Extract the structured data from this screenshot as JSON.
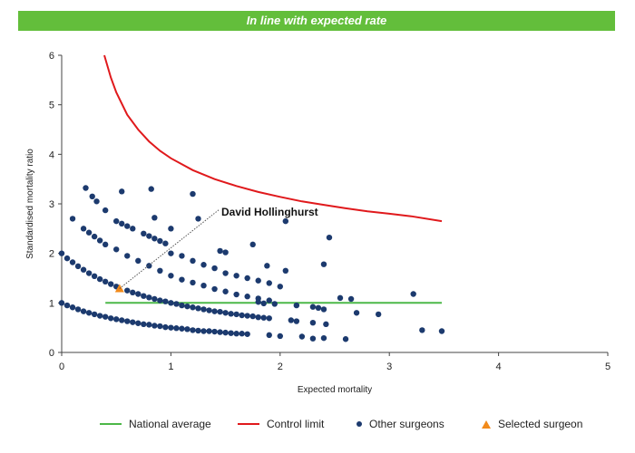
{
  "banner": {
    "text": "In line with expected rate",
    "color": "#63be3b"
  },
  "chart_data": {
    "type": "scatter",
    "title": "",
    "xlabel": "Expected mortality",
    "ylabel": "Standardised mortality ratio",
    "xlim": [
      0,
      5
    ],
    "ylim": [
      0,
      6
    ],
    "xticks": [
      "0",
      "1",
      "2",
      "3",
      "4",
      "5"
    ],
    "yticks": [
      "0",
      "1",
      "2",
      "3",
      "4",
      "5",
      "6"
    ],
    "grid": false,
    "legend_placement": "bottom",
    "annotation": {
      "text": "David Hollinghurst",
      "x": 0.53,
      "y": 1.29
    },
    "series": [
      {
        "name": "National average",
        "kind": "line",
        "color": "#4cb848",
        "points": [
          [
            0.4,
            1.0
          ],
          [
            3.48,
            1.0
          ]
        ]
      },
      {
        "name": "Control limit",
        "kind": "line",
        "color": "#e0191c",
        "points": [
          [
            0.39,
            6.0
          ],
          [
            0.45,
            5.55
          ],
          [
            0.5,
            5.25
          ],
          [
            0.6,
            4.8
          ],
          [
            0.7,
            4.5
          ],
          [
            0.8,
            4.26
          ],
          [
            0.9,
            4.07
          ],
          [
            1.0,
            3.92
          ],
          [
            1.2,
            3.68
          ],
          [
            1.4,
            3.5
          ],
          [
            1.6,
            3.36
          ],
          [
            1.8,
            3.24
          ],
          [
            2.0,
            3.14
          ],
          [
            2.2,
            3.05
          ],
          [
            2.4,
            2.98
          ],
          [
            2.6,
            2.91
          ],
          [
            2.8,
            2.85
          ],
          [
            3.0,
            2.8
          ],
          [
            3.2,
            2.75
          ],
          [
            3.48,
            2.65
          ]
        ]
      },
      {
        "name": "Other surgeons",
        "kind": "scatter",
        "color": "#1c3a6e",
        "points": [
          [
            0.0,
            1.0
          ],
          [
            0.05,
            0.95
          ],
          [
            0.1,
            0.91
          ],
          [
            0.15,
            0.87
          ],
          [
            0.2,
            0.83
          ],
          [
            0.25,
            0.8
          ],
          [
            0.3,
            0.77
          ],
          [
            0.35,
            0.74
          ],
          [
            0.4,
            0.72
          ],
          [
            0.45,
            0.69
          ],
          [
            0.5,
            0.67
          ],
          [
            0.55,
            0.65
          ],
          [
            0.6,
            0.63
          ],
          [
            0.65,
            0.61
          ],
          [
            0.7,
            0.59
          ],
          [
            0.75,
            0.57
          ],
          [
            0.8,
            0.56
          ],
          [
            0.85,
            0.54
          ],
          [
            0.9,
            0.53
          ],
          [
            0.95,
            0.51
          ],
          [
            1.0,
            0.5
          ],
          [
            1.05,
            0.49
          ],
          [
            1.1,
            0.48
          ],
          [
            1.15,
            0.47
          ],
          [
            1.2,
            0.45
          ],
          [
            1.25,
            0.44
          ],
          [
            1.3,
            0.43
          ],
          [
            1.35,
            0.43
          ],
          [
            1.4,
            0.42
          ],
          [
            1.45,
            0.41
          ],
          [
            1.5,
            0.4
          ],
          [
            1.55,
            0.39
          ],
          [
            1.6,
            0.38
          ],
          [
            1.65,
            0.38
          ],
          [
            1.7,
            0.37
          ],
          [
            0.0,
            2.0
          ],
          [
            0.05,
            1.9
          ],
          [
            0.1,
            1.82
          ],
          [
            0.15,
            1.74
          ],
          [
            0.2,
            1.67
          ],
          [
            0.25,
            1.6
          ],
          [
            0.3,
            1.54
          ],
          [
            0.35,
            1.48
          ],
          [
            0.4,
            1.43
          ],
          [
            0.45,
            1.38
          ],
          [
            0.5,
            1.33
          ],
          [
            0.6,
            1.25
          ],
          [
            0.65,
            1.21
          ],
          [
            0.7,
            1.18
          ],
          [
            0.75,
            1.14
          ],
          [
            0.8,
            1.11
          ],
          [
            0.85,
            1.08
          ],
          [
            0.9,
            1.05
          ],
          [
            0.95,
            1.03
          ],
          [
            1.0,
            1.0
          ],
          [
            1.05,
            0.98
          ],
          [
            1.1,
            0.95
          ],
          [
            1.15,
            0.93
          ],
          [
            1.2,
            0.91
          ],
          [
            1.25,
            0.89
          ],
          [
            1.3,
            0.87
          ],
          [
            1.35,
            0.85
          ],
          [
            1.4,
            0.83
          ],
          [
            1.45,
            0.82
          ],
          [
            1.5,
            0.8
          ],
          [
            1.55,
            0.78
          ],
          [
            1.6,
            0.77
          ],
          [
            1.65,
            0.75
          ],
          [
            1.7,
            0.74
          ],
          [
            1.75,
            0.73
          ],
          [
            1.8,
            0.71
          ],
          [
            1.85,
            0.7
          ],
          [
            1.9,
            0.69
          ],
          [
            0.2,
            2.5
          ],
          [
            0.25,
            2.42
          ],
          [
            0.3,
            2.34
          ],
          [
            0.35,
            2.26
          ],
          [
            0.4,
            2.18
          ],
          [
            0.5,
            2.08
          ],
          [
            0.6,
            1.95
          ],
          [
            0.7,
            1.85
          ],
          [
            0.8,
            1.75
          ],
          [
            0.9,
            1.65
          ],
          [
            1.0,
            1.55
          ],
          [
            1.1,
            1.47
          ],
          [
            1.2,
            1.41
          ],
          [
            1.3,
            1.35
          ],
          [
            1.4,
            1.28
          ],
          [
            1.5,
            1.23
          ],
          [
            1.6,
            1.17
          ],
          [
            1.7,
            1.13
          ],
          [
            1.8,
            1.09
          ],
          [
            1.9,
            1.05
          ],
          [
            0.5,
            2.65
          ],
          [
            0.55,
            2.6
          ],
          [
            0.6,
            2.55
          ],
          [
            0.65,
            2.5
          ],
          [
            0.75,
            2.4
          ],
          [
            0.8,
            2.35
          ],
          [
            0.85,
            2.3
          ],
          [
            0.9,
            2.25
          ],
          [
            0.95,
            2.2
          ],
          [
            1.0,
            2.0
          ],
          [
            1.1,
            1.95
          ],
          [
            1.2,
            1.85
          ],
          [
            1.3,
            1.77
          ],
          [
            1.4,
            1.7
          ],
          [
            1.5,
            1.6
          ],
          [
            1.6,
            1.55
          ],
          [
            1.7,
            1.5
          ],
          [
            1.8,
            1.45
          ],
          [
            1.9,
            1.4
          ],
          [
            0.22,
            3.32
          ],
          [
            0.28,
            3.15
          ],
          [
            0.32,
            3.05
          ],
          [
            0.4,
            2.87
          ],
          [
            0.55,
            3.25
          ],
          [
            0.82,
            3.3
          ],
          [
            1.2,
            3.2
          ],
          [
            0.85,
            2.72
          ],
          [
            1.25,
            2.7
          ],
          [
            0.1,
            2.7
          ],
          [
            1.0,
            2.5
          ],
          [
            1.45,
            2.05
          ],
          [
            1.5,
            2.02
          ],
          [
            1.75,
            2.18
          ],
          [
            1.88,
            1.75
          ],
          [
            2.05,
            1.65
          ],
          [
            2.05,
            2.65
          ],
          [
            2.4,
            1.78
          ],
          [
            2.45,
            2.32
          ],
          [
            2.0,
            1.33
          ],
          [
            2.15,
            0.95
          ],
          [
            2.3,
            0.92
          ],
          [
            2.35,
            0.9
          ],
          [
            2.4,
            0.87
          ],
          [
            2.55,
            1.1
          ],
          [
            2.65,
            1.08
          ],
          [
            2.7,
            0.8
          ],
          [
            2.9,
            0.77
          ],
          [
            3.22,
            1.18
          ],
          [
            3.3,
            0.45
          ],
          [
            3.48,
            0.43
          ],
          [
            2.1,
            0.65
          ],
          [
            2.15,
            0.63
          ],
          [
            2.3,
            0.6
          ],
          [
            2.42,
            0.57
          ],
          [
            2.3,
            0.28
          ],
          [
            2.4,
            0.29
          ],
          [
            2.6,
            0.27
          ],
          [
            2.2,
            0.32
          ],
          [
            1.9,
            0.35
          ],
          [
            2.0,
            0.33
          ],
          [
            1.8,
            1.02
          ],
          [
            1.85,
            0.99
          ],
          [
            1.95,
            0.98
          ]
        ]
      },
      {
        "name": "Selected surgeon",
        "kind": "marker",
        "color": "#f28a1a",
        "points": [
          [
            0.53,
            1.29
          ]
        ]
      }
    ]
  }
}
